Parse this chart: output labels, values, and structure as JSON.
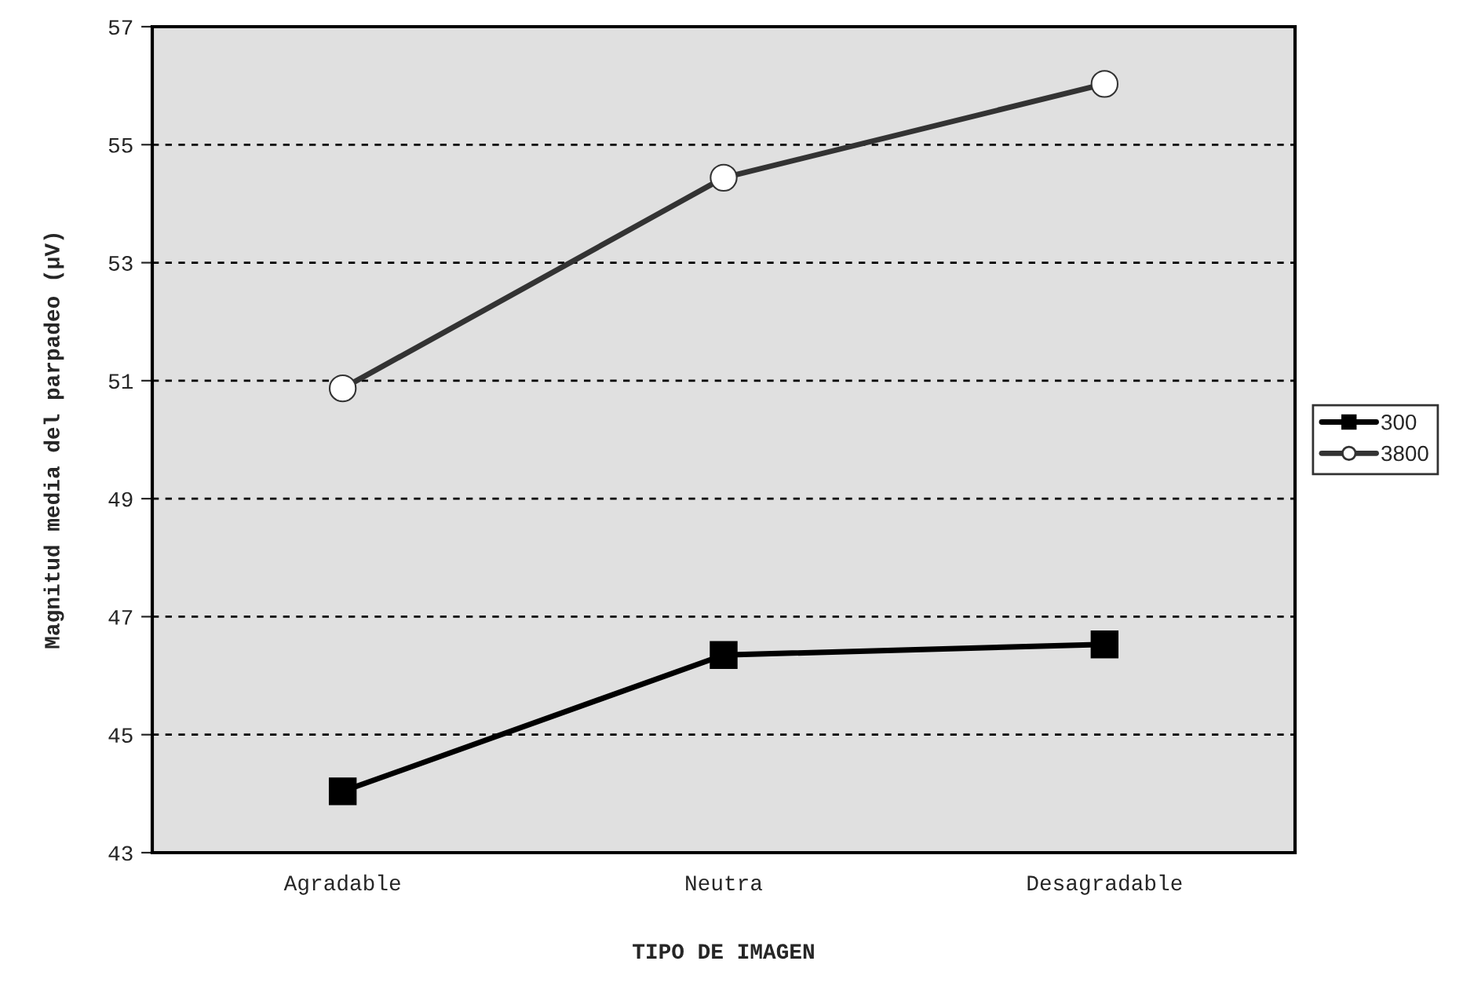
{
  "chart_data": {
    "type": "line",
    "xlabel": "TIPO DE IMAGEN",
    "ylabel": "Magnitud media del parpadeo (μV)",
    "categories": [
      "Agradable",
      "Neutra",
      "Desagradable"
    ],
    "series": [
      {
        "name": "300",
        "color": "#000000",
        "marker": "square",
        "values": [
          44.04,
          46.35,
          46.53
        ]
      },
      {
        "name": "3800",
        "color": "#333333",
        "marker": "circle",
        "values": [
          50.87,
          54.44,
          56.03
        ]
      }
    ],
    "ylim": [
      43,
      57
    ],
    "yticks": [
      43,
      45,
      47,
      49,
      51,
      53,
      55,
      57
    ],
    "grid": "y",
    "legend": "right",
    "line_style": "solid"
  }
}
